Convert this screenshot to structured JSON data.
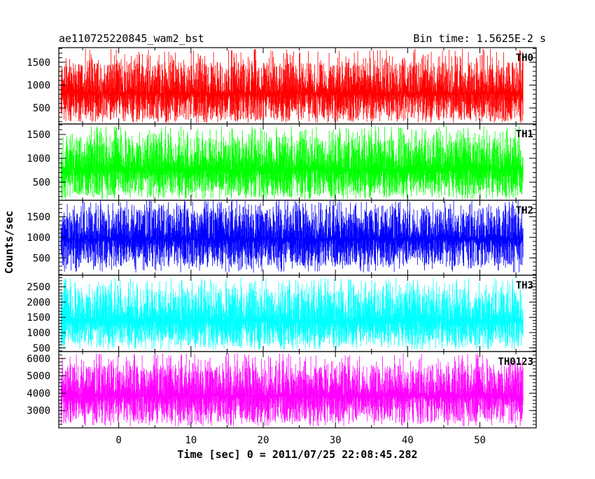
{
  "header": {
    "left_title": "ae110725220845_wam2_bst",
    "right_title": "Bin time: 1.5625E-2 s"
  },
  "chart_data": {
    "type": "line",
    "title": "ae110725220845_wam2_bst",
    "bin_time": "Bin time: 1.5625E-2 s",
    "xlabel": "Time [sec] 0 = 2011/07/25 22:08:45.282",
    "ylabel": "Counts/sec",
    "xlim": [
      -8.3,
      57.8
    ],
    "x_ticks": [
      0,
      10,
      20,
      30,
      40,
      50
    ],
    "x_tick_labels": [
      "0",
      "10",
      "20",
      "30",
      "40",
      "50"
    ],
    "x_data_range": [
      -8,
      56
    ],
    "grid": false,
    "shared_x": true,
    "panels": [
      {
        "name": "TH0",
        "color": "#ff0000",
        "ylim": [
          150,
          1820
        ],
        "y_ticks": [
          500,
          1000,
          1500
        ],
        "y_tick_labels": [
          "500",
          "1000",
          "1500"
        ],
        "mean": 820,
        "typical_min": 230,
        "typical_max": 1500,
        "peak": 1800
      },
      {
        "name": "TH1",
        "color": "#00ff00",
        "ylim": [
          120,
          1720
        ],
        "y_ticks": [
          500,
          1000,
          1500
        ],
        "y_tick_labels": [
          "500",
          "1000",
          "1500"
        ],
        "mean": 760,
        "typical_min": 200,
        "typical_max": 1450,
        "peak": 1680
      },
      {
        "name": "TH2",
        "color": "#0000ff",
        "ylim": [
          80,
          1900
        ],
        "y_ticks": [
          500,
          1000,
          1500
        ],
        "y_tick_labels": [
          "500",
          "1000",
          "1500"
        ],
        "mean": 950,
        "typical_min": 300,
        "typical_max": 1700,
        "peak": 1900
      },
      {
        "name": "TH3",
        "color": "#00ffff",
        "ylim": [
          380,
          2880
        ],
        "y_ticks": [
          500,
          1000,
          1500,
          2000,
          2500
        ],
        "y_tick_labels": [
          "500",
          "1000",
          "1500",
          "2000",
          "2500"
        ],
        "mean": 1380,
        "typical_min": 560,
        "typical_max": 2450,
        "peak": 2800
      },
      {
        "name": "TH0123",
        "color": "#ff00ff",
        "ylim": [
          2000,
          6400
        ],
        "y_ticks": [
          3000,
          4000,
          5000,
          6000
        ],
        "y_tick_labels": [
          "3000",
          "4000",
          "5000",
          "6000"
        ],
        "mean": 3850,
        "typical_min": 2300,
        "typical_max": 5600,
        "peak": 6300
      }
    ]
  }
}
